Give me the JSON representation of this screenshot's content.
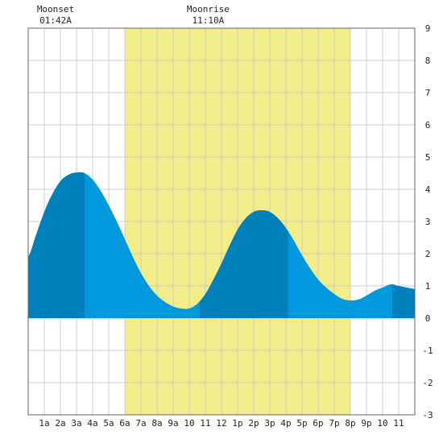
{
  "chart_data": {
    "type": "area",
    "title": "",
    "xlabel": "",
    "ylabel": "",
    "xlim": [
      0,
      24
    ],
    "ylim": [
      -3,
      9
    ],
    "grid": true,
    "y_ticks": [
      -3,
      -2,
      -1,
      0,
      1,
      2,
      3,
      4,
      5,
      6,
      7,
      8,
      9
    ],
    "x_ticks": [
      {
        "x": 1,
        "label": "1a"
      },
      {
        "x": 2,
        "label": "2a"
      },
      {
        "x": 3,
        "label": "3a"
      },
      {
        "x": 4,
        "label": "4a"
      },
      {
        "x": 5,
        "label": "5a"
      },
      {
        "x": 6,
        "label": "6a"
      },
      {
        "x": 7,
        "label": "7a"
      },
      {
        "x": 8,
        "label": "8a"
      },
      {
        "x": 9,
        "label": "9a"
      },
      {
        "x": 10,
        "label": "10"
      },
      {
        "x": 11,
        "label": "11"
      },
      {
        "x": 12,
        "label": "12"
      },
      {
        "x": 13,
        "label": "1p"
      },
      {
        "x": 14,
        "label": "2p"
      },
      {
        "x": 15,
        "label": "3p"
      },
      {
        "x": 16,
        "label": "4p"
      },
      {
        "x": 17,
        "label": "5p"
      },
      {
        "x": 18,
        "label": "6p"
      },
      {
        "x": 19,
        "label": "7p"
      },
      {
        "x": 20,
        "label": "8p"
      },
      {
        "x": 21,
        "label": "9p"
      },
      {
        "x": 22,
        "label": "10"
      },
      {
        "x": 23,
        "label": "11"
      }
    ],
    "daylight": {
      "start": 6.0,
      "end": 20.0,
      "color": "#f2ed88"
    },
    "tide_points": [
      [
        0.0,
        1.9
      ],
      [
        0.5,
        2.6
      ],
      [
        1.0,
        3.3
      ],
      [
        1.5,
        3.85
      ],
      [
        2.0,
        4.25
      ],
      [
        2.5,
        4.45
      ],
      [
        3.0,
        4.52
      ],
      [
        3.5,
        4.5
      ],
      [
        4.0,
        4.3
      ],
      [
        4.5,
        3.95
      ],
      [
        5.0,
        3.5
      ],
      [
        5.5,
        3.0
      ],
      [
        6.0,
        2.45
      ],
      [
        6.5,
        1.9
      ],
      [
        7.0,
        1.4
      ],
      [
        7.5,
        1.0
      ],
      [
        8.0,
        0.7
      ],
      [
        8.5,
        0.5
      ],
      [
        9.0,
        0.36
      ],
      [
        9.5,
        0.3
      ],
      [
        10.0,
        0.3
      ],
      [
        10.5,
        0.45
      ],
      [
        11.0,
        0.75
      ],
      [
        11.5,
        1.2
      ],
      [
        12.0,
        1.7
      ],
      [
        12.5,
        2.25
      ],
      [
        13.0,
        2.75
      ],
      [
        13.5,
        3.1
      ],
      [
        14.0,
        3.3
      ],
      [
        14.5,
        3.35
      ],
      [
        15.0,
        3.3
      ],
      [
        15.5,
        3.1
      ],
      [
        16.0,
        2.8
      ],
      [
        16.5,
        2.4
      ],
      [
        17.0,
        1.95
      ],
      [
        17.5,
        1.55
      ],
      [
        18.0,
        1.2
      ],
      [
        18.5,
        0.95
      ],
      [
        19.0,
        0.75
      ],
      [
        19.5,
        0.6
      ],
      [
        20.0,
        0.55
      ],
      [
        20.5,
        0.58
      ],
      [
        21.0,
        0.7
      ],
      [
        21.5,
        0.85
      ],
      [
        22.0,
        0.95
      ],
      [
        22.5,
        1.05
      ],
      [
        23.0,
        1.0
      ]
    ],
    "rising_segments": [
      [
        0,
        3.5
      ],
      [
        10.65,
        16.15
      ],
      [
        22.6,
        24
      ]
    ],
    "colors": {
      "falling": "#0099dd",
      "rising": "#0080bb",
      "grid": "#cccccc",
      "axis": "#666666"
    },
    "annotations": [
      {
        "name": "Moonset",
        "time": "01:42A",
        "x": 1.7
      },
      {
        "name": "Moonrise",
        "time": "11:10A",
        "x": 11.17
      }
    ]
  }
}
